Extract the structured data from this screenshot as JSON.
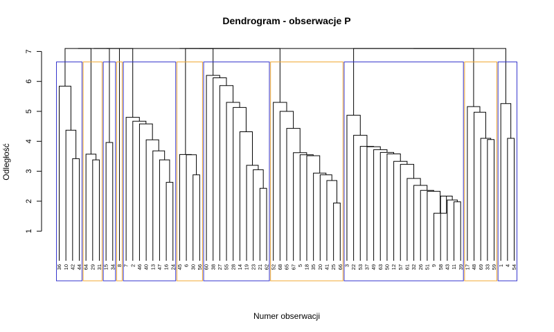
{
  "chart_data": {
    "type": "dendrogram",
    "title": "Dendrogram - obserwacje P",
    "xlabel": "Numer obserwacji",
    "ylabel": "Odległość",
    "ylim": [
      0,
      7.2
    ],
    "y_ticks": [
      1,
      2,
      3,
      4,
      5,
      6,
      7
    ],
    "colors": {
      "blue": "#3333cc",
      "orange": "#f0a830",
      "line": "#000000"
    },
    "leaves": [
      "36",
      "10",
      "42",
      "44",
      "64",
      "29",
      "31",
      "15",
      "34",
      "8",
      "7",
      "2",
      "46",
      "40",
      "13",
      "47",
      "16",
      "24",
      "45",
      "6",
      "30",
      "56",
      "60",
      "38",
      "27",
      "55",
      "28",
      "14",
      "19",
      "23",
      "21",
      "62",
      "52",
      "68",
      "65",
      "67",
      "5",
      "18",
      "35",
      "20",
      "41",
      "25",
      "66",
      "3",
      "22",
      "53",
      "37",
      "49",
      "63",
      "50",
      "12",
      "57",
      "61",
      "32",
      "26",
      "51",
      "9",
      "58",
      "43",
      "11",
      "39",
      "17",
      "48",
      "69",
      "33",
      "59",
      "1",
      "4",
      "54"
    ],
    "clusters": [
      {
        "from": "36",
        "to": "44",
        "color": "blue"
      },
      {
        "from": "64",
        "to": "31",
        "color": "orange"
      },
      {
        "from": "15",
        "to": "34",
        "color": "blue"
      },
      {
        "from": "8",
        "to": "8",
        "color": "orange"
      },
      {
        "from": "7",
        "to": "24",
        "color": "blue"
      },
      {
        "from": "45",
        "to": "56",
        "color": "orange"
      },
      {
        "from": "60",
        "to": "62",
        "color": "blue"
      },
      {
        "from": "52",
        "to": "66",
        "color": "orange"
      },
      {
        "from": "3",
        "to": "39",
        "color": "blue"
      },
      {
        "from": "17",
        "to": "59",
        "color": "orange"
      },
      {
        "from": "1",
        "to": "54",
        "color": "blue"
      }
    ],
    "merges": [
      {
        "a": "42",
        "b": "44",
        "h": 3.42
      },
      {
        "a": "10",
        "b": 0,
        "h": 4.37
      },
      {
        "a": "36",
        "b": 1,
        "h": 5.84
      },
      {
        "a": "29",
        "b": "31",
        "h": 3.38
      },
      {
        "a": "64",
        "b": 3,
        "h": 3.57
      },
      {
        "a": "15",
        "b": "34",
        "h": 3.96
      },
      {
        "a": "16",
        "b": "24",
        "h": 2.63
      },
      {
        "a": 6,
        "b": "47",
        "h": 3.38
      },
      {
        "a": "13",
        "b": 7,
        "h": 3.68
      },
      {
        "a": "40",
        "b": 8,
        "h": 4.05
      },
      {
        "a": "46",
        "b": 9,
        "h": 4.58
      },
      {
        "a": "2",
        "b": 10,
        "h": 4.67
      },
      {
        "a": "7",
        "b": 11,
        "h": 4.8
      },
      {
        "a": "30",
        "b": "56",
        "h": 2.88
      },
      {
        "a": "6",
        "b": 13,
        "h": 3.55
      },
      {
        "a": "45",
        "b": 14,
        "h": 3.56
      },
      {
        "a": "21",
        "b": "62",
        "h": 2.43
      },
      {
        "a": "23",
        "b": 16,
        "h": 3.05
      },
      {
        "a": "19",
        "b": 17,
        "h": 3.2
      },
      {
        "a": "14",
        "b": 18,
        "h": 4.32
      },
      {
        "a": "28",
        "b": 19,
        "h": 5.13
      },
      {
        "a": "55",
        "b": 20,
        "h": 5.3
      },
      {
        "a": "27",
        "b": 21,
        "h": 5.86
      },
      {
        "a": "38",
        "b": 22,
        "h": 6.12
      },
      {
        "a": "60",
        "b": 23,
        "h": 6.2
      },
      {
        "a": "25",
        "b": "66",
        "h": 1.94
      },
      {
        "a": "41",
        "b": 25,
        "h": 2.69
      },
      {
        "a": "20",
        "b": 26,
        "h": 2.88
      },
      {
        "a": "35",
        "b": 27,
        "h": 2.94
      },
      {
        "a": "18",
        "b": 28,
        "h": 3.52
      },
      {
        "a": "5",
        "b": 29,
        "h": 3.55
      },
      {
        "a": "67",
        "b": 30,
        "h": 3.62
      },
      {
        "a": "65",
        "b": 31,
        "h": 4.43
      },
      {
        "a": "68",
        "b": 32,
        "h": 5.0
      },
      {
        "a": "52",
        "b": 33,
        "h": 5.3
      },
      {
        "a": "11",
        "b": "39",
        "h": 1.98
      },
      {
        "a": "43",
        "b": 35,
        "h": 2.04
      },
      {
        "a": "58",
        "b": 36,
        "h": 2.17
      },
      {
        "a": "9",
        "b": 37,
        "h": 1.6
      },
      {
        "a": "51",
        "b": 38,
        "h": 2.33
      },
      {
        "a": "26",
        "b": 39,
        "h": 2.36
      },
      {
        "a": "32",
        "b": 40,
        "h": 2.53
      },
      {
        "a": "61",
        "b": 41,
        "h": 2.76
      },
      {
        "a": "57",
        "b": 42,
        "h": 3.23
      },
      {
        "a": "12",
        "b": 43,
        "h": 3.33
      },
      {
        "a": "50",
        "b": 44,
        "h": 3.58
      },
      {
        "a": "63",
        "b": 45,
        "h": 3.63
      },
      {
        "a": "49",
        "b": 46,
        "h": 3.72
      },
      {
        "a": "37",
        "b": 47,
        "h": 3.82
      },
      {
        "a": "53",
        "b": 48,
        "h": 3.83
      },
      {
        "a": "22",
        "b": 49,
        "h": 4.2
      },
      {
        "a": "3",
        "b": 50,
        "h": 4.87
      },
      {
        "a": "33",
        "b": "59",
        "h": 4.06
      },
      {
        "a": "69",
        "b": 52,
        "h": 4.1
      },
      {
        "a": "48",
        "b": 53,
        "h": 4.97
      },
      {
        "a": "17",
        "b": 54,
        "h": 5.16
      },
      {
        "a": "4",
        "b": "54",
        "h": 4.1
      },
      {
        "a": "1",
        "b": 56,
        "h": 5.26
      },
      {
        "a": 2,
        "b": 4,
        "h": 7.1
      },
      {
        "a": 58,
        "b": 5,
        "h": 7.1
      },
      {
        "a": 59,
        "b": "8",
        "h": 7.1
      },
      {
        "a": 60,
        "b": 12,
        "h": 7.1
      },
      {
        "a": 15,
        "b": 24,
        "h": 7.1
      },
      {
        "a": 62,
        "b": 34,
        "h": 7.1
      },
      {
        "a": 61,
        "b": 63,
        "h": 7.1
      },
      {
        "a": 51,
        "b": 55,
        "h": 7.1
      },
      {
        "a": 65,
        "b": 57,
        "h": 7.1
      },
      {
        "a": 64,
        "b": 66,
        "h": 7.1
      }
    ]
  }
}
